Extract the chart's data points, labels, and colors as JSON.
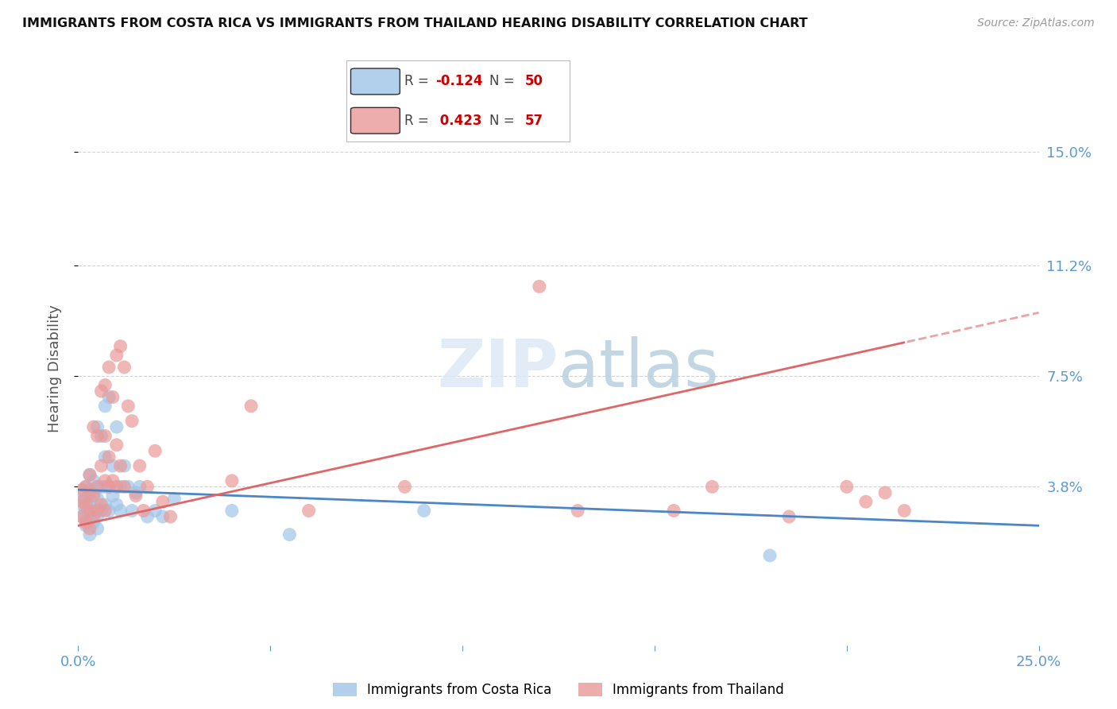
{
  "title": "IMMIGRANTS FROM COSTA RICA VS IMMIGRANTS FROM THAILAND HEARING DISABILITY CORRELATION CHART",
  "source": "Source: ZipAtlas.com",
  "ylabel": "Hearing Disability",
  "ytick_labels": [
    "15.0%",
    "11.2%",
    "7.5%",
    "3.8%"
  ],
  "ytick_values": [
    0.15,
    0.112,
    0.075,
    0.038
  ],
  "xlim": [
    0.0,
    0.25
  ],
  "ylim": [
    -0.015,
    0.17
  ],
  "costa_rica_color": "#9fc5e8",
  "thailand_color": "#ea9999",
  "costa_rica_line_color": "#4a86c8",
  "thailand_line_color": "#e06666",
  "background_color": "#ffffff",
  "grid_color": "#c9c9c9",
  "costa_rica_x": [
    0.001,
    0.001,
    0.001,
    0.002,
    0.002,
    0.002,
    0.002,
    0.003,
    0.003,
    0.003,
    0.003,
    0.003,
    0.004,
    0.004,
    0.004,
    0.004,
    0.005,
    0.005,
    0.005,
    0.005,
    0.005,
    0.006,
    0.006,
    0.006,
    0.007,
    0.007,
    0.007,
    0.007,
    0.008,
    0.008,
    0.008,
    0.009,
    0.009,
    0.01,
    0.01,
    0.011,
    0.011,
    0.012,
    0.013,
    0.014,
    0.015,
    0.016,
    0.018,
    0.02,
    0.022,
    0.025,
    0.04,
    0.055,
    0.09,
    0.18
  ],
  "costa_rica_y": [
    0.028,
    0.032,
    0.035,
    0.025,
    0.03,
    0.034,
    0.038,
    0.022,
    0.028,
    0.033,
    0.037,
    0.042,
    0.026,
    0.03,
    0.036,
    0.04,
    0.024,
    0.028,
    0.034,
    0.038,
    0.058,
    0.03,
    0.038,
    0.055,
    0.032,
    0.038,
    0.048,
    0.065,
    0.03,
    0.038,
    0.068,
    0.035,
    0.045,
    0.032,
    0.058,
    0.03,
    0.038,
    0.045,
    0.038,
    0.03,
    0.036,
    0.038,
    0.028,
    0.03,
    0.028,
    0.034,
    0.03,
    0.022,
    0.03,
    0.015
  ],
  "thailand_x": [
    0.001,
    0.001,
    0.001,
    0.002,
    0.002,
    0.002,
    0.003,
    0.003,
    0.003,
    0.003,
    0.004,
    0.004,
    0.004,
    0.005,
    0.005,
    0.005,
    0.006,
    0.006,
    0.006,
    0.007,
    0.007,
    0.007,
    0.007,
    0.008,
    0.008,
    0.008,
    0.009,
    0.009,
    0.01,
    0.01,
    0.01,
    0.011,
    0.011,
    0.012,
    0.012,
    0.013,
    0.014,
    0.015,
    0.016,
    0.017,
    0.018,
    0.02,
    0.022,
    0.024,
    0.04,
    0.045,
    0.06,
    0.085,
    0.12,
    0.13,
    0.155,
    0.165,
    0.185,
    0.2,
    0.205,
    0.21,
    0.215
  ],
  "thailand_y": [
    0.028,
    0.033,
    0.037,
    0.026,
    0.032,
    0.038,
    0.024,
    0.03,
    0.036,
    0.042,
    0.028,
    0.035,
    0.058,
    0.03,
    0.038,
    0.055,
    0.032,
    0.045,
    0.07,
    0.03,
    0.04,
    0.055,
    0.072,
    0.038,
    0.048,
    0.078,
    0.04,
    0.068,
    0.038,
    0.052,
    0.082,
    0.045,
    0.085,
    0.038,
    0.078,
    0.065,
    0.06,
    0.035,
    0.045,
    0.03,
    0.038,
    0.05,
    0.033,
    0.028,
    0.04,
    0.065,
    0.03,
    0.038,
    0.105,
    0.03,
    0.03,
    0.038,
    0.028,
    0.038,
    0.033,
    0.036,
    0.03
  ]
}
